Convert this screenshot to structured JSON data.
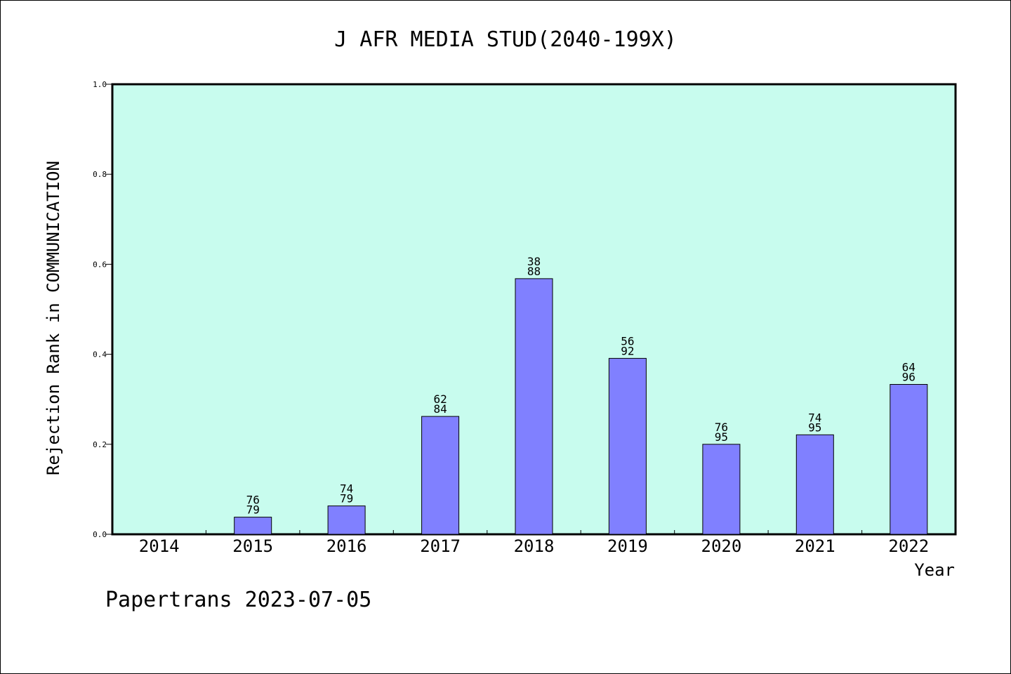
{
  "chart_data": {
    "type": "bar",
    "title": "J AFR MEDIA STUD(2040-199X)",
    "xlabel": "Year",
    "ylabel": "Rejection Rank in COMMUNICATION",
    "categories": [
      "2014",
      "2015",
      "2016",
      "2017",
      "2018",
      "2019",
      "2020",
      "2021",
      "2022"
    ],
    "values": [
      0,
      0.038,
      0.063,
      0.262,
      0.568,
      0.391,
      0.2,
      0.221,
      0.333
    ],
    "bar_labels": [
      null,
      [
        "76",
        "79"
      ],
      [
        "74",
        "79"
      ],
      [
        "62",
        "84"
      ],
      [
        "38",
        "88"
      ],
      [
        "56",
        "92"
      ],
      [
        "76",
        "95"
      ],
      [
        "74",
        "95"
      ],
      [
        "64",
        "96"
      ]
    ],
    "ylim": [
      0,
      1.0
    ],
    "yticks": [
      "0.0",
      "0.2",
      "0.4",
      "0.6",
      "0.8",
      "1.0"
    ],
    "grid": false,
    "colors": {
      "plot_background": "#c8fcee",
      "bar_fill": "#8080ff",
      "bar_stroke": "#000000",
      "axes": "#000000"
    }
  },
  "footer": {
    "text": "Papertrans 2023-07-05"
  }
}
